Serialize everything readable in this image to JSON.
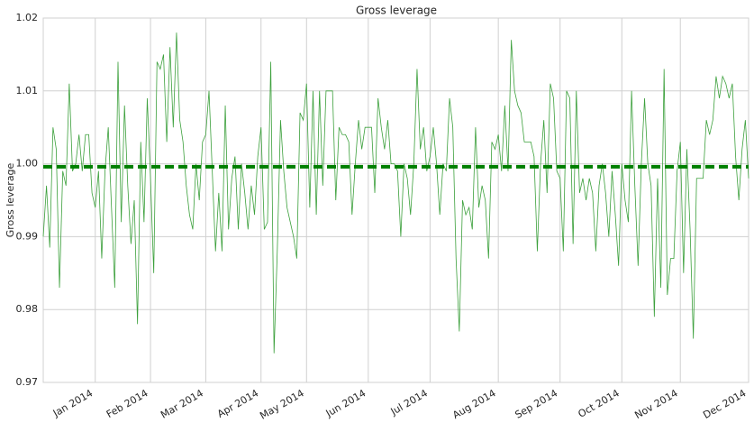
{
  "chart_data": {
    "type": "line",
    "title": "Gross leverage",
    "y_label": "Gross leverage",
    "categories": [
      null,
      null,
      null,
      null,
      null,
      null,
      null,
      null,
      null,
      null,
      null,
      null,
      null,
      null,
      null,
      null,
      "Jan 2014",
      null,
      null,
      null,
      null,
      null,
      null,
      null,
      null,
      null,
      null,
      null,
      null,
      null,
      null,
      null,
      null,
      "Feb 2014",
      null,
      null,
      null,
      null,
      null,
      null,
      null,
      null,
      null,
      null,
      null,
      null,
      null,
      null,
      null,
      null,
      "Mar 2014",
      null,
      null,
      null,
      null,
      null,
      null,
      null,
      null,
      null,
      null,
      null,
      null,
      null,
      null,
      null,
      null,
      "Apr 2014",
      null,
      null,
      null,
      null,
      null,
      null,
      null,
      null,
      null,
      null,
      null,
      null,
      null,
      "May 2014",
      null,
      null,
      null,
      null,
      null,
      null,
      null,
      null,
      null,
      null,
      null,
      null,
      null,
      null,
      null,
      null,
      null,
      null,
      "Jun 2014",
      null,
      null,
      null,
      null,
      null,
      null,
      null,
      null,
      null,
      null,
      null,
      null,
      null,
      null,
      null,
      null,
      null,
      null,
      "Jul 2014",
      null,
      null,
      null,
      null,
      null,
      null,
      null,
      null,
      null,
      null,
      null,
      null,
      null,
      null,
      null,
      null,
      null,
      null,
      null,
      null,
      "Aug 2014",
      null,
      null,
      null,
      null,
      null,
      null,
      null,
      null,
      null,
      null,
      null,
      null,
      null,
      null,
      null,
      null,
      null,
      null,
      "Sep 2014",
      null,
      null,
      null,
      null,
      null,
      null,
      null,
      null,
      null,
      null,
      null,
      null,
      null,
      null,
      null,
      null,
      null,
      null,
      "Oct 2014",
      null,
      null,
      null,
      null,
      null,
      null,
      null,
      null,
      null,
      null,
      null,
      null,
      null,
      null,
      null,
      null,
      null,
      "Nov 2014",
      null,
      null,
      null,
      null,
      null,
      null,
      null,
      null,
      null,
      null,
      null,
      null,
      null,
      null,
      null,
      null,
      null,
      null,
      null,
      null,
      "Dec 2014"
    ],
    "values": [
      0.99,
      0.997,
      0.9885,
      1.005,
      1.002,
      0.983,
      0.999,
      0.997,
      1.011,
      0.999,
      1.0,
      1.004,
      0.999,
      1.004,
      1.004,
      0.996,
      0.994,
      0.999,
      0.987,
      0.999,
      1.005,
      0.994,
      0.983,
      1.014,
      0.992,
      1.008,
      0.997,
      0.989,
      0.995,
      0.978,
      1.003,
      0.992,
      1.009,
      0.998,
      0.985,
      1.014,
      1.013,
      1.015,
      1.003,
      1.016,
      1.005,
      1.018,
      1.006,
      1.003,
      0.997,
      0.993,
      0.991,
      1.0,
      0.995,
      1.003,
      1.004,
      1.01,
      0.999,
      0.988,
      0.996,
      0.988,
      1.008,
      0.991,
      0.998,
      1.001,
      0.991,
      1.0,
      0.996,
      0.991,
      0.997,
      0.993,
      1.001,
      1.005,
      0.991,
      0.992,
      1.014,
      0.974,
      0.988,
      1.006,
      0.999,
      0.994,
      0.992,
      0.99,
      0.987,
      1.007,
      1.006,
      1.011,
      0.994,
      1.01,
      0.993,
      1.01,
      0.997,
      1.01,
      1.01,
      1.01,
      0.995,
      1.005,
      1.004,
      1.004,
      1.003,
      0.993,
      1.0,
      1.006,
      1.002,
      1.005,
      1.005,
      1.005,
      0.996,
      1.009,
      1.005,
      1.002,
      1.006,
      1.0,
      1.0,
      0.999,
      0.99,
      1.0,
      0.998,
      0.993,
      1.0,
      1.013,
      1.002,
      1.005,
      0.999,
      1.001,
      1.005,
      1.0,
      0.993,
      1.0,
      0.999,
      1.009,
      1.005,
      0.987,
      0.977,
      0.995,
      0.993,
      0.994,
      0.991,
      1.005,
      0.994,
      0.997,
      0.995,
      0.987,
      1.003,
      1.002,
      1.004,
      0.999,
      1.008,
      0.999,
      1.017,
      1.01,
      1.008,
      1.007,
      1.003,
      1.003,
      1.003,
      1.001,
      0.988,
      1.0,
      1.006,
      0.996,
      1.011,
      1.009,
      0.999,
      0.998,
      0.988,
      1.01,
      1.009,
      0.989,
      1.01,
      0.996,
      0.998,
      0.995,
      0.998,
      0.996,
      0.988,
      0.997,
      1.0,
      0.996,
      0.99,
      0.999,
      0.993,
      0.986,
      1.0,
      0.995,
      0.992,
      1.01,
      0.997,
      0.986,
      1.0,
      1.009,
      1.0,
      0.997,
      0.979,
      0.998,
      0.983,
      1.013,
      0.982,
      0.987,
      0.987,
      0.999,
      1.003,
      0.985,
      1.002,
      0.991,
      0.976,
      0.998,
      0.998,
      0.998,
      1.006,
      1.004,
      1.006,
      1.012,
      1.009,
      1.012,
      1.011,
      1.009,
      1.011,
      1.001,
      0.995,
      1.002,
      1.006,
      0.998
    ],
    "color": "#3ca03c",
    "hlines": [
      {
        "value": 0.9996,
        "color": "#007f00",
        "style": "dashed"
      }
    ],
    "ylim": [
      0.97,
      1.02
    ],
    "yticks": [
      0.97,
      0.98,
      0.99,
      {
        "value": 1,
        "label": "1.00"
      },
      1.01,
      1.02
    ],
    "grid": true
  }
}
